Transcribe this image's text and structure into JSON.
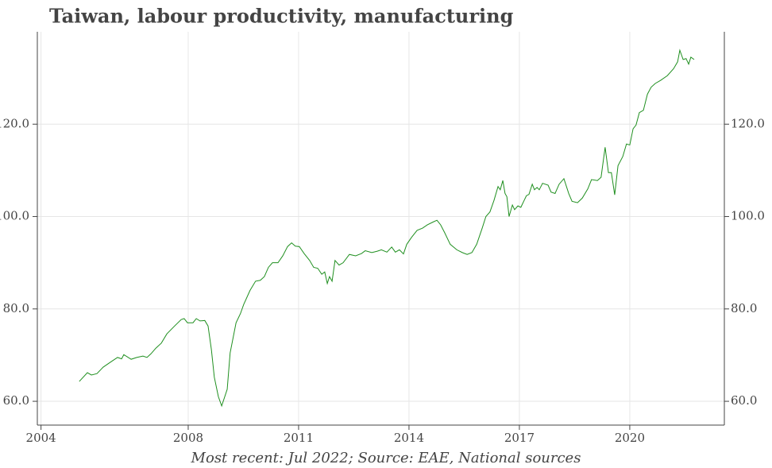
{
  "chart_data": {
    "type": "line",
    "title": "Taiwan, labour productivity, manufacturing",
    "footnote": "Most recent: Jul 2022; Source: EAE, National sources",
    "x": [
      2005.04,
      2005.26,
      2005.37,
      2005.52,
      2005.69,
      2005.91,
      2006.08,
      2006.19,
      2006.25,
      2006.45,
      2006.6,
      2006.77,
      2006.88,
      2006.99,
      2007.12,
      2007.27,
      2007.42,
      2007.63,
      2007.81,
      2007.89,
      2007.98,
      2008.13,
      2008.22,
      2008.32,
      2008.45,
      2008.54,
      2008.63,
      2008.71,
      2008.82,
      2008.91,
      2009.06,
      2009.14,
      2009.3,
      2009.42,
      2009.51,
      2009.68,
      2009.83,
      2009.96,
      2010.07,
      2010.18,
      2010.29,
      2010.44,
      2010.57,
      2010.7,
      2010.81,
      2010.91,
      2011.02,
      2011.15,
      2011.3,
      2011.41,
      2011.52,
      2011.63,
      2011.71,
      2011.78,
      2011.84,
      2011.91,
      2011.99,
      2012.1,
      2012.21,
      2012.38,
      2012.55,
      2012.71,
      2012.81,
      2012.99,
      2013.14,
      2013.25,
      2013.4,
      2013.53,
      2013.63,
      2013.74,
      2013.85,
      2013.94,
      2014.07,
      2014.22,
      2014.37,
      2014.5,
      2014.65,
      2014.76,
      2014.86,
      2014.97,
      2015.12,
      2015.3,
      2015.45,
      2015.58,
      2015.71,
      2015.84,
      2015.99,
      2016.09,
      2016.2,
      2016.31,
      2016.42,
      2016.48,
      2016.55,
      2016.61,
      2016.66,
      2016.72,
      2016.81,
      2016.87,
      2016.96,
      2017.04,
      2017.13,
      2017.19,
      2017.26,
      2017.35,
      2017.41,
      2017.48,
      2017.54,
      2017.63,
      2017.78,
      2017.86,
      2017.97,
      2018.08,
      2018.21,
      2018.34,
      2018.43,
      2018.58,
      2018.71,
      2018.86,
      2018.96,
      2019.12,
      2019.22,
      2019.33,
      2019.42,
      2019.5,
      2019.59,
      2019.68,
      2019.81,
      2019.91,
      2020.0,
      2020.09,
      2020.17,
      2020.26,
      2020.37,
      2020.48,
      2020.58,
      2020.69,
      2020.84,
      2021.02,
      2021.19,
      2021.3,
      2021.36,
      2021.45,
      2021.53,
      2021.6,
      2021.66,
      2021.75
    ],
    "series": [
      {
        "name": "Labour productivity",
        "color": "#1f8f1f",
        "values": [
          64.3,
          66.2,
          65.7,
          66.0,
          67.4,
          68.6,
          69.5,
          69.2,
          70.1,
          69.1,
          69.5,
          69.8,
          69.5,
          70.3,
          71.5,
          72.6,
          74.6,
          76.3,
          77.7,
          77.9,
          77.0,
          77.0,
          77.9,
          77.4,
          77.5,
          76.3,
          71.2,
          65.2,
          61.0,
          59.0,
          62.6,
          70.5,
          77.0,
          79.0,
          81.0,
          84.0,
          86.0,
          86.2,
          87.0,
          89.0,
          90.0,
          90.0,
          91.5,
          93.5,
          94.3,
          93.6,
          93.5,
          92.0,
          90.5,
          89.0,
          88.8,
          87.5,
          88.0,
          85.5,
          87.0,
          86.0,
          90.5,
          89.5,
          90.0,
          91.8,
          91.5,
          92.0,
          92.6,
          92.2,
          92.5,
          92.8,
          92.3,
          93.4,
          92.3,
          92.8,
          91.9,
          94.0,
          95.5,
          97.0,
          97.5,
          98.2,
          98.8,
          99.2,
          98.2,
          96.5,
          94.0,
          92.8,
          92.2,
          91.8,
          92.2,
          94.0,
          97.5,
          100.0,
          101.0,
          103.5,
          106.5,
          105.8,
          107.8,
          105.0,
          104.3,
          100.0,
          102.5,
          101.5,
          102.3,
          102.0,
          103.5,
          104.5,
          104.8,
          107.0,
          105.8,
          106.3,
          105.8,
          107.2,
          106.8,
          105.3,
          105.0,
          107.0,
          108.2,
          105.0,
          103.3,
          103.0,
          104.0,
          106.0,
          108.0,
          107.8,
          108.5,
          115.0,
          109.5,
          109.5,
          104.7,
          111.0,
          113.0,
          115.7,
          115.5,
          119.0,
          119.8,
          122.5,
          123.0,
          126.5,
          128.0,
          128.8,
          129.5,
          130.5,
          132.0,
          133.5,
          136.0,
          134.0,
          134.2,
          133.0,
          134.5,
          134.0
        ]
      }
    ],
    "xlim": [
      2003.9,
      2022.57
    ],
    "xticks": [
      2004,
      2008,
      2011,
      2014,
      2017,
      2020
    ],
    "ylim": [
      54.85,
      140
    ],
    "yticks": [
      {
        "value": 60,
        "label": "60.0"
      },
      {
        "value": 80,
        "label": "80.0"
      },
      {
        "value": 100,
        "label": "100.0"
      },
      {
        "value": 120,
        "label": "120.0"
      }
    ],
    "grid": true
  }
}
